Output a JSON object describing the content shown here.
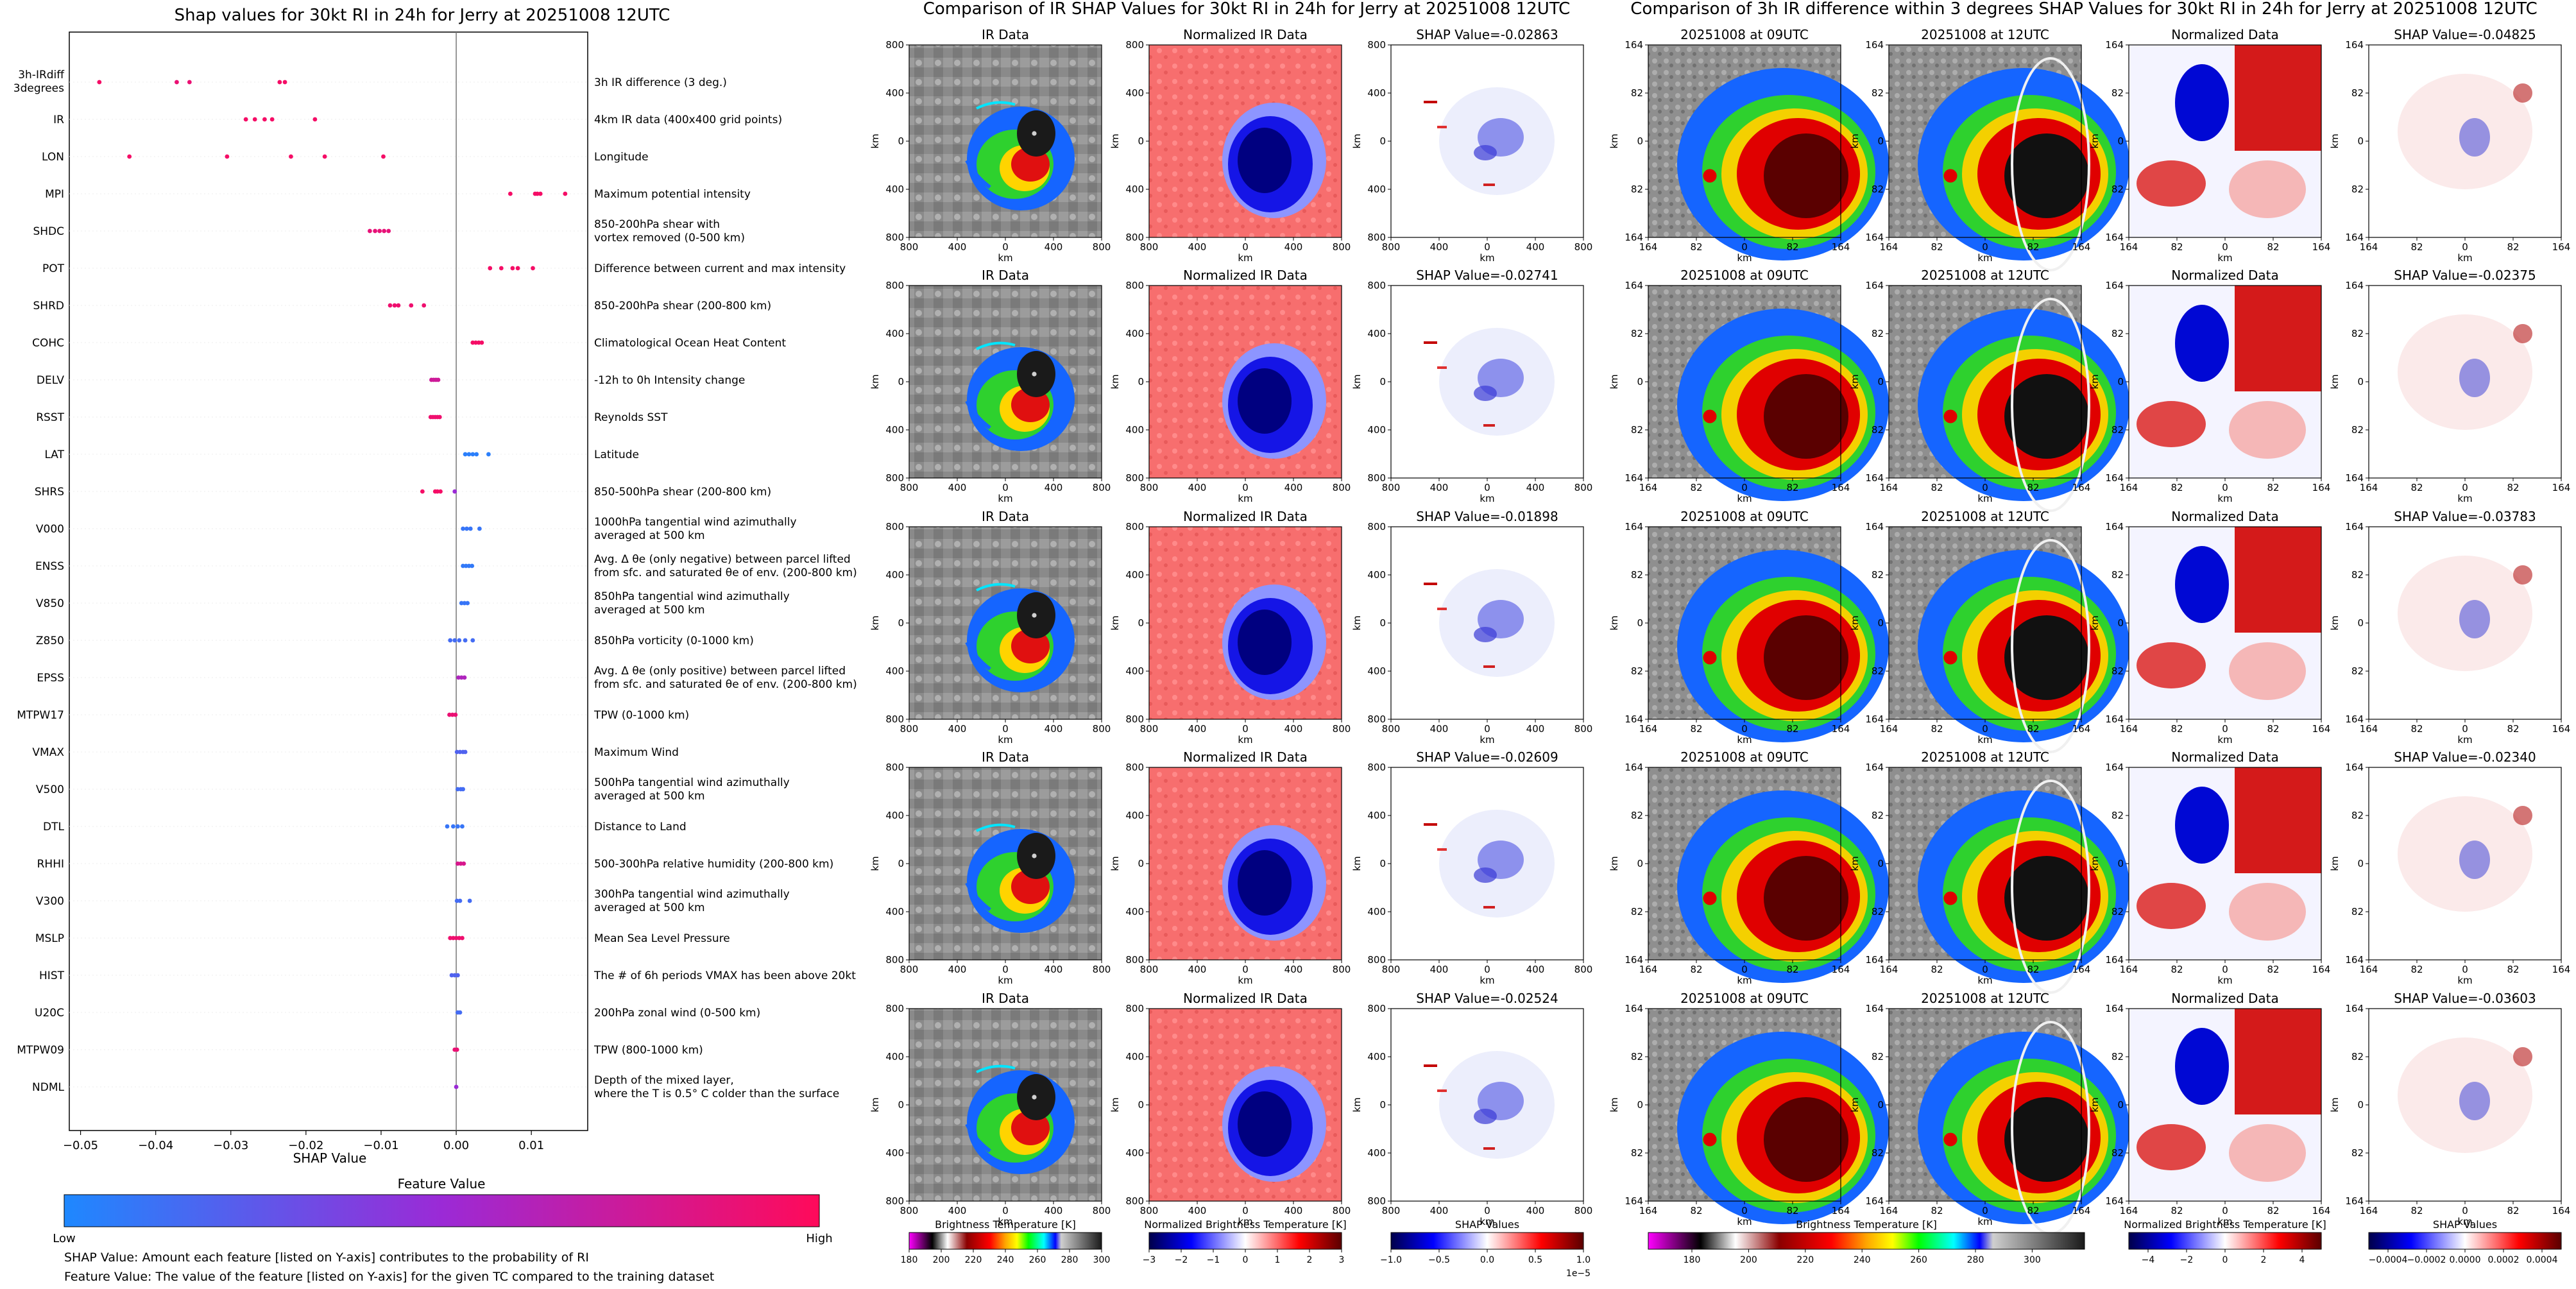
{
  "colors": {
    "feature_low": "#1e88ff",
    "feature_mid": "#9b2ad6",
    "feature_high": "#ff0a5a",
    "grid": "#eeeeee",
    "axis": "#000000"
  },
  "shap_panel": {
    "title": "Shap values for 30kt RI in 24h for Jerry at 20251008 12UTC",
    "xlabel": "SHAP Value",
    "colorbar_title": "Feature Value",
    "colorbar_low": "Low",
    "colorbar_high": "High",
    "note1": "SHAP Value: Amount each feature [listed on Y-axis] contributes to the probability of RI",
    "note2": "Feature Value: The value of the feature [listed on Y-axis] for the given TC compared to the training dataset"
  },
  "chart_data": [
    {
      "type": "scatter",
      "title": "Shap values for 30kt RI in 24h for Jerry at 20251008 12UTC",
      "xlabel": "SHAP Value",
      "xlim": [
        -0.0515,
        0.0175
      ],
      "xticks": [
        -0.05,
        -0.04,
        -0.03,
        -0.02,
        -0.01,
        0.0,
        0.01
      ],
      "xtick_labels": [
        "−0.05",
        "−0.04",
        "−0.03",
        "−0.02",
        "−0.01",
        "0.00",
        "0.01"
      ],
      "features": [
        {
          "name": [
            "3h-IRdiff",
            "3degrees"
          ],
          "desc": [
            "3h IR difference (3 deg.)"
          ],
          "points": [
            {
              "x": -0.0475,
              "v": 0.95
            },
            {
              "x": -0.0372,
              "v": 0.9
            },
            {
              "x": -0.0355,
              "v": 0.9
            },
            {
              "x": -0.0235,
              "v": 0.95
            },
            {
              "x": -0.0228,
              "v": 0.95
            }
          ]
        },
        {
          "name": [
            "IR"
          ],
          "desc": [
            "4km IR data (400x400 grid points)"
          ],
          "points": [
            {
              "x": -0.028,
              "v": 0.95
            },
            {
              "x": -0.0268,
              "v": 0.95
            },
            {
              "x": -0.0255,
              "v": 0.95
            },
            {
              "x": -0.0245,
              "v": 0.95
            },
            {
              "x": -0.0188,
              "v": 0.95
            }
          ]
        },
        {
          "name": [
            "LON"
          ],
          "desc": [
            "Longitude"
          ],
          "points": [
            {
              "x": -0.0435,
              "v": 0.95
            },
            {
              "x": -0.0305,
              "v": 0.95
            },
            {
              "x": -0.022,
              "v": 0.95
            },
            {
              "x": -0.0175,
              "v": 0.95
            },
            {
              "x": -0.0097,
              "v": 0.95
            }
          ]
        },
        {
          "name": [
            "MPI"
          ],
          "desc": [
            "Maximum potential intensity"
          ],
          "points": [
            {
              "x": 0.0072,
              "v": 0.95
            },
            {
              "x": 0.0105,
              "v": 0.95
            },
            {
              "x": 0.0108,
              "v": 0.95
            },
            {
              "x": 0.0112,
              "v": 0.95
            },
            {
              "x": 0.0145,
              "v": 0.95
            }
          ]
        },
        {
          "name": [
            "SHDC"
          ],
          "desc": [
            "850-200hPa shear with",
            "vortex removed (0-500 km)"
          ],
          "points": [
            {
              "x": -0.0115,
              "v": 0.88
            },
            {
              "x": -0.0108,
              "v": 0.88
            },
            {
              "x": -0.0102,
              "v": 0.88
            },
            {
              "x": -0.0096,
              "v": 0.88
            },
            {
              "x": -0.009,
              "v": 0.88
            }
          ]
        },
        {
          "name": [
            "POT"
          ],
          "desc": [
            "Difference between current and max intensity"
          ],
          "points": [
            {
              "x": 0.0045,
              "v": 0.95
            },
            {
              "x": 0.006,
              "v": 0.95
            },
            {
              "x": 0.0075,
              "v": 0.95
            },
            {
              "x": 0.0082,
              "v": 0.95
            },
            {
              "x": 0.0102,
              "v": 0.95
            }
          ]
        },
        {
          "name": [
            "SHRD"
          ],
          "desc": [
            "850-200hPa shear (200-800 km)"
          ],
          "points": [
            {
              "x": -0.0088,
              "v": 0.92
            },
            {
              "x": -0.0082,
              "v": 0.92
            },
            {
              "x": -0.0077,
              "v": 0.92
            },
            {
              "x": -0.006,
              "v": 0.92
            },
            {
              "x": -0.0043,
              "v": 0.92
            }
          ]
        },
        {
          "name": [
            "COHC"
          ],
          "desc": [
            "Climatological Ocean Heat Content"
          ],
          "points": [
            {
              "x": 0.0022,
              "v": 0.95
            },
            {
              "x": 0.0026,
              "v": 0.95
            },
            {
              "x": 0.003,
              "v": 0.95
            },
            {
              "x": 0.0034,
              "v": 0.95
            }
          ]
        },
        {
          "name": [
            "DELV"
          ],
          "desc": [
            "-12h to 0h Intensity change"
          ],
          "points": [
            {
              "x": -0.0033,
              "v": 0.75
            },
            {
              "x": -0.003,
              "v": 0.75
            },
            {
              "x": -0.0027,
              "v": 0.75
            },
            {
              "x": -0.0024,
              "v": 0.75
            }
          ]
        },
        {
          "name": [
            "RSST"
          ],
          "desc": [
            "Reynolds SST"
          ],
          "points": [
            {
              "x": -0.0034,
              "v": 0.92
            },
            {
              "x": -0.0031,
              "v": 0.92
            },
            {
              "x": -0.0028,
              "v": 0.92
            },
            {
              "x": -0.0025,
              "v": 0.92
            },
            {
              "x": -0.0022,
              "v": 0.92
            }
          ]
        },
        {
          "name": [
            "LAT"
          ],
          "desc": [
            "Latitude"
          ],
          "points": [
            {
              "x": 0.0012,
              "v": 0.05
            },
            {
              "x": 0.0017,
              "v": 0.05
            },
            {
              "x": 0.0022,
              "v": 0.05
            },
            {
              "x": 0.0027,
              "v": 0.05
            },
            {
              "x": 0.0043,
              "v": 0.05
            }
          ]
        },
        {
          "name": [
            "SHRS"
          ],
          "desc": [
            "850-500hPa shear (200-800 km)"
          ],
          "points": [
            {
              "x": -0.0045,
              "v": 0.95
            },
            {
              "x": -0.0028,
              "v": 0.95
            },
            {
              "x": -0.0025,
              "v": 0.95
            },
            {
              "x": -0.0021,
              "v": 0.95
            },
            {
              "x": -0.0002,
              "v": 0.5
            }
          ]
        },
        {
          "name": [
            "V000"
          ],
          "desc": [
            "1000hPa tangential wind azimuthally",
            "averaged at 500 km"
          ],
          "points": [
            {
              "x": 0.0009,
              "v": 0.1
            },
            {
              "x": 0.0014,
              "v": 0.1
            },
            {
              "x": 0.0019,
              "v": 0.1
            },
            {
              "x": 0.0031,
              "v": 0.1
            }
          ]
        },
        {
          "name": [
            "ENSS"
          ],
          "desc": [
            "Avg. Δ θe (only negative) between parcel lifted",
            "from sfc. and saturated θe of env. (200-800 km)"
          ],
          "points": [
            {
              "x": 0.0009,
              "v": 0.08
            },
            {
              "x": 0.0013,
              "v": 0.08
            },
            {
              "x": 0.0017,
              "v": 0.08
            },
            {
              "x": 0.0021,
              "v": 0.08
            }
          ]
        },
        {
          "name": [
            "V850"
          ],
          "desc": [
            "850hPa tangential wind azimuthally",
            "averaged at 500 km"
          ],
          "points": [
            {
              "x": 0.0007,
              "v": 0.1
            },
            {
              "x": 0.0011,
              "v": 0.1
            },
            {
              "x": 0.0015,
              "v": 0.1
            }
          ]
        },
        {
          "name": [
            "Z850"
          ],
          "desc": [
            "850hPa vorticity (0-1000 km)"
          ],
          "points": [
            {
              "x": -0.0008,
              "v": 0.15
            },
            {
              "x": -0.0002,
              "v": 0.15
            },
            {
              "x": 0.0004,
              "v": 0.15
            },
            {
              "x": 0.0012,
              "v": 0.15
            },
            {
              "x": 0.0022,
              "v": 0.15
            }
          ]
        },
        {
          "name": [
            "EPSS"
          ],
          "desc": [
            "Avg. Δ θe (only positive) between parcel lifted",
            "from sfc. and saturated θe of env. (200-800 km)"
          ],
          "points": [
            {
              "x": 0.0003,
              "v": 0.6
            },
            {
              "x": 0.0007,
              "v": 0.6
            },
            {
              "x": 0.0011,
              "v": 0.6
            }
          ]
        },
        {
          "name": [
            "MTPW17"
          ],
          "desc": [
            "TPW (0-1000 km)"
          ],
          "points": [
            {
              "x": -0.0009,
              "v": 0.9
            },
            {
              "x": -0.0005,
              "v": 0.9
            },
            {
              "x": -0.0001,
              "v": 0.9
            }
          ]
        },
        {
          "name": [
            "VMAX"
          ],
          "desc": [
            "Maximum Wind"
          ],
          "points": [
            {
              "x": 0.0001,
              "v": 0.2
            },
            {
              "x": 0.0005,
              "v": 0.2
            },
            {
              "x": 0.0009,
              "v": 0.2
            },
            {
              "x": 0.0012,
              "v": 0.2
            }
          ]
        },
        {
          "name": [
            "V500"
          ],
          "desc": [
            "500hPa tangential wind azimuthally",
            "averaged at 500 km"
          ],
          "points": [
            {
              "x": 0.0002,
              "v": 0.15
            },
            {
              "x": 0.0006,
              "v": 0.15
            },
            {
              "x": 0.0009,
              "v": 0.15
            }
          ]
        },
        {
          "name": [
            "DTL"
          ],
          "desc": [
            "Distance to Land"
          ],
          "points": [
            {
              "x": -0.0012,
              "v": 0.1
            },
            {
              "x": -0.0004,
              "v": 0.1
            },
            {
              "x": 0.0002,
              "v": 0.1
            },
            {
              "x": 0.0008,
              "v": 0.1
            }
          ]
        },
        {
          "name": [
            "RHHI"
          ],
          "desc": [
            "500-300hPa relative humidity (200-800 km)"
          ],
          "points": [
            {
              "x": 0.0002,
              "v": 0.8
            },
            {
              "x": 0.0006,
              "v": 0.8
            },
            {
              "x": 0.001,
              "v": 0.8
            }
          ]
        },
        {
          "name": [
            "V300"
          ],
          "desc": [
            "300hPa tangential wind azimuthally",
            "averaged at 500 km"
          ],
          "points": [
            {
              "x": 0.0001,
              "v": 0.15
            },
            {
              "x": 0.0005,
              "v": 0.15
            },
            {
              "x": 0.0018,
              "v": 0.15
            }
          ]
        },
        {
          "name": [
            "MSLP"
          ],
          "desc": [
            "Mean Sea Level Pressure"
          ],
          "points": [
            {
              "x": -0.0008,
              "v": 0.92
            },
            {
              "x": -0.0004,
              "v": 0.92
            },
            {
              "x": 0.0,
              "v": 0.92
            },
            {
              "x": 0.0004,
              "v": 0.92
            },
            {
              "x": 0.0008,
              "v": 0.92
            }
          ]
        },
        {
          "name": [
            "HIST"
          ],
          "desc": [
            "The # of 6h periods VMAX has been above 20kt"
          ],
          "points": [
            {
              "x": -0.0006,
              "v": 0.2
            },
            {
              "x": -0.0002,
              "v": 0.2
            },
            {
              "x": 0.0002,
              "v": 0.2
            }
          ]
        },
        {
          "name": [
            "U20C"
          ],
          "desc": [
            "200hPa zonal wind (0-500 km)"
          ],
          "points": [
            {
              "x": 0.0002,
              "v": 0.15
            },
            {
              "x": 0.0005,
              "v": 0.15
            }
          ]
        },
        {
          "name": [
            "MTPW09"
          ],
          "desc": [
            "TPW (800-1000 km)"
          ],
          "points": [
            {
              "x": -0.0002,
              "v": 0.9
            },
            {
              "x": 0.0001,
              "v": 0.9
            }
          ]
        },
        {
          "name": [
            "NDML"
          ],
          "desc": [
            "Depth of the mixed layer,",
            "where the T is 0.5° C colder than the surface"
          ],
          "points": [
            {
              "x": 0.0,
              "v": 0.5
            }
          ]
        }
      ]
    },
    {
      "type": "image-grid",
      "title": "Comparison of IR SHAP Values for 30kt RI in 24h for Jerry at 20251008 12UTC",
      "column_titles": [
        "IR Data",
        "Normalized IR Data"
      ],
      "shap_titles": [
        "SHAP Value=-0.02863",
        "SHAP Value=-0.02741",
        "SHAP Value=-0.01898",
        "SHAP Value=-0.02609",
        "SHAP Value=-0.02524"
      ],
      "shap_values": [
        -0.02863,
        -0.02741,
        -0.01898,
        -0.02609,
        -0.02524
      ],
      "ytick_labels": [
        "800",
        "400",
        "0",
        "400",
        "800"
      ],
      "xtick_labels": [
        "800",
        "400",
        "0",
        "400",
        "800"
      ],
      "axis_label": "km",
      "colorbars": [
        {
          "label": "Brightness Temperature [K]",
          "ticks": [
            "180",
            "200",
            "220",
            "240",
            "260",
            "280",
            "300"
          ]
        },
        {
          "label": "Normalized Brightness Temperature [K]",
          "ticks": [
            "−3",
            "−2",
            "−1",
            "0",
            "1",
            "2",
            "3"
          ]
        },
        {
          "label": "SHAP Values",
          "ticks": [
            "−1.0",
            "−0.5",
            "0.0",
            "0.5",
            "1.0"
          ],
          "offset": "1e−5"
        }
      ]
    },
    {
      "type": "image-grid",
      "title": "Comparison of 3h IR difference within 3 degrees SHAP Values for 30kt RI in 24h for Jerry at 20251008 12UTC",
      "column_titles": [
        "20251008 at 09UTC",
        "20251008 at 12UTC",
        "Normalized Data"
      ],
      "shap_titles": [
        "SHAP Value=-0.04825",
        "SHAP Value=-0.02375",
        "SHAP Value=-0.03783",
        "SHAP Value=-0.02340",
        "SHAP Value=-0.03603"
      ],
      "shap_values": [
        -0.04825,
        -0.02375,
        -0.03783,
        -0.0234,
        -0.03603
      ],
      "ytick_labels": [
        "164",
        "82",
        "0",
        "82",
        "164"
      ],
      "xtick_labels": [
        "164",
        "82",
        "0",
        "82",
        "164"
      ],
      "axis_label": "km",
      "colorbars": [
        {
          "label": "Brightness Temperature [K]",
          "ticks": [
            "180",
            "200",
            "220",
            "240",
            "260",
            "280",
            "300"
          ]
        },
        {
          "label": "Normalized Brightness Temperature [K]",
          "ticks": [
            "−4",
            "−2",
            "0",
            "2",
            "4"
          ]
        },
        {
          "label": "SHAP Values",
          "ticks": [
            "−0.0004",
            "−0.0002",
            "0.0000",
            "0.0002",
            "0.0004"
          ]
        }
      ]
    }
  ]
}
